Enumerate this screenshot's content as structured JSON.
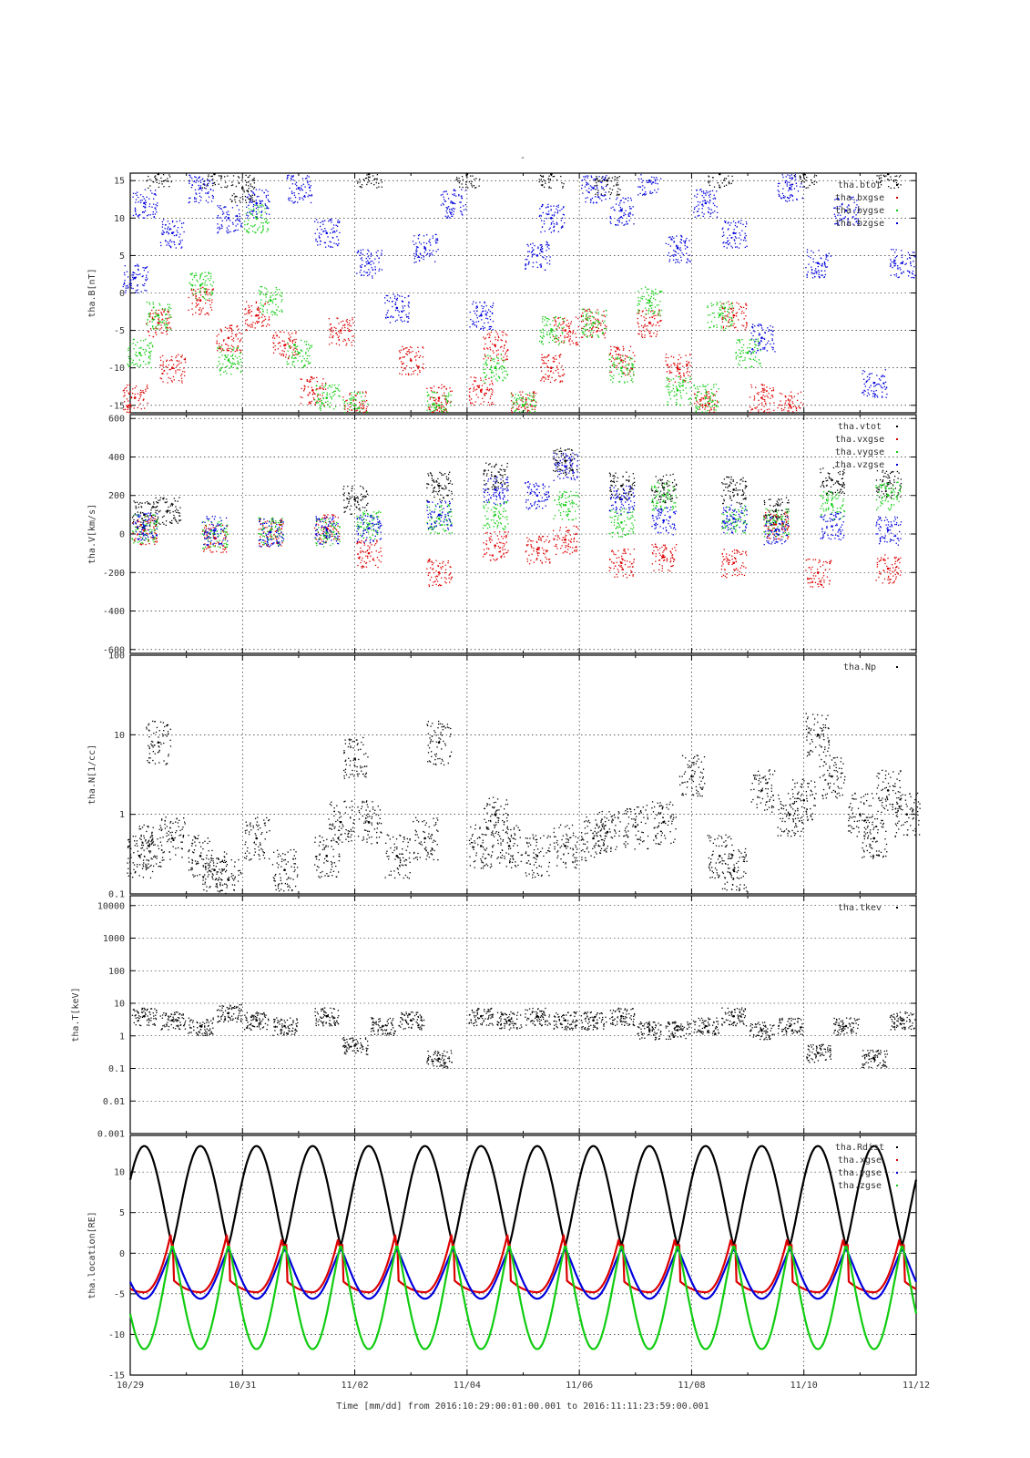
{
  "figure": {
    "title": "-",
    "xaxis_label": "Time [mm/dd]  from 2016:10:29:00:01:00.001  to  2016:11:11:23:59:00.001",
    "x_ticks": [
      "10/29",
      "10/31",
      "11/02",
      "11/04",
      "11/06",
      "11/08",
      "11/10",
      "11/12"
    ]
  },
  "colors": {
    "black": "#000000",
    "red": "#dd0000",
    "green": "#11cc11",
    "blue": "#0000dd",
    "grid": "#000000"
  },
  "chart_data": [
    {
      "type": "scatter",
      "id": "B",
      "ylabel": "tha.B[nT]",
      "ylim": [
        -16,
        16
      ],
      "yscale": "linear",
      "yticks": [
        15,
        10,
        5,
        0,
        -5,
        -10,
        -15
      ],
      "ytick_labels": [
        "15",
        "10",
        "5",
        "0",
        "-5",
        "-10",
        "-15"
      ],
      "legend_position": "top-right",
      "grid": true,
      "series": [
        {
          "name": "tha.btot",
          "color": "black",
          "x": [
            "10/29 12:00",
            "10/30 12:00",
            "10/31 00:00",
            "11/02 06:00",
            "11/04 00:00",
            "11/05 12:00",
            "11/06 12:00",
            "11/08 12:00",
            "11/10 00:00",
            "11/11 12:00"
          ],
          "y": [
            16,
            16,
            14,
            16,
            16,
            16,
            15,
            16,
            16,
            16
          ]
        },
        {
          "name": "tha.bxgse",
          "color": "red",
          "x": [
            "10/29 02:00",
            "10/29 12:00",
            "10/29 18:00",
            "10/30 06:00",
            "10/30 18:00",
            "10/31 06:00",
            "10/31 18:00",
            "11/01 06:00",
            "11/01 18:00",
            "11/02 00:00",
            "11/03 00:00",
            "11/03 12:00",
            "11/04 06:00",
            "11/04 12:00",
            "11/05 00:00",
            "11/05 12:00",
            "11/05 18:00",
            "11/06 06:00",
            "11/06 18:00",
            "11/07 06:00",
            "11/07 18:00",
            "11/08 06:00",
            "11/08 18:00",
            "11/09 06:00",
            "11/09 18:00"
          ],
          "y": [
            -14,
            -4,
            -10,
            -1,
            -6,
            -3,
            -7,
            -13,
            -5,
            -15,
            -9,
            -14,
            -13,
            -7,
            -15,
            -10,
            -5,
            -4,
            -9,
            -4,
            -10,
            -15,
            -3,
            -14,
            -15
          ]
        },
        {
          "name": "tha.bygse",
          "color": "green",
          "x": [
            "10/29 04:00",
            "10/29 12:00",
            "10/30 06:00",
            "10/30 18:00",
            "10/31 06:00",
            "10/31 12:00",
            "11/01 00:00",
            "11/01 12:00",
            "11/02 00:00",
            "11/03 12:00",
            "11/04 12:00",
            "11/05 00:00",
            "11/05 12:00",
            "11/06 06:00",
            "11/06 18:00",
            "11/07 06:00",
            "11/07 18:00",
            "11/08 06:00",
            "11/08 12:00",
            "11/09 00:00"
          ],
          "y": [
            -8,
            -3,
            1,
            -9,
            10,
            -1,
            -8,
            -14,
            -15,
            -15,
            -10,
            -15,
            -5,
            -4,
            -10,
            -1,
            -13,
            -14,
            -3,
            -8
          ]
        },
        {
          "name": "tha.bzgse",
          "color": "blue",
          "x": [
            "10/29 02:00",
            "10/29 06:00",
            "10/29 18:00",
            "10/30 06:00",
            "10/30 18:00",
            "10/31 06:00",
            "11/01 00:00",
            "11/01 12:00",
            "11/02 06:00",
            "11/02 18:00",
            "11/03 06:00",
            "11/03 18:00",
            "11/04 06:00",
            "11/05 06:00",
            "11/05 12:00",
            "11/06 06:00",
            "11/06 18:00",
            "11/07 06:00",
            "11/07 18:00",
            "11/08 06:00",
            "11/08 18:00",
            "11/09 06:00",
            "11/09 18:00",
            "11/10 06:00",
            "11/10 18:00",
            "11/11 06:00",
            "11/11 18:00"
          ],
          "y": [
            2,
            12,
            8,
            14,
            10,
            12,
            14,
            8,
            4,
            -2,
            6,
            12,
            -3,
            5,
            10,
            14,
            11,
            15,
            6,
            12,
            8,
            -6,
            14,
            4,
            11,
            -12,
            4
          ]
        }
      ]
    },
    {
      "type": "scatter",
      "id": "V",
      "ylabel": "tha.V[km/s]",
      "ylim": [
        -620,
        620
      ],
      "yscale": "linear",
      "yticks": [
        600,
        400,
        200,
        0,
        -200,
        -400,
        -600
      ],
      "ytick_labels": [
        "600",
        "400",
        "200",
        "0",
        "-200",
        "-400",
        "-600"
      ],
      "legend_position": "top-right",
      "grid": true,
      "series": [
        {
          "name": "tha.vtot",
          "color": "black",
          "x": [
            "10/29 06:00",
            "10/29 16:00",
            "11/02 00:00",
            "11/03 12:00",
            "11/04 12:00",
            "11/05 18:00",
            "11/06 18:00",
            "11/07 12:00",
            "11/08 18:00",
            "11/09 12:00",
            "11/10 12:00",
            "11/11 12:00"
          ],
          "y": [
            100,
            120,
            180,
            250,
            300,
            380,
            250,
            240,
            230,
            120,
            280,
            260
          ]
        },
        {
          "name": "tha.vxgse",
          "color": "red",
          "x": [
            "10/29 06:00",
            "10/30 12:00",
            "10/31 12:00",
            "11/01 12:00",
            "11/02 06:00",
            "11/03 12:00",
            "11/04 12:00",
            "11/05 06:00",
            "11/05 18:00",
            "11/06 18:00",
            "11/07 12:00",
            "11/08 18:00",
            "11/09 12:00",
            "11/10 06:00",
            "11/11 12:00"
          ],
          "y": [
            20,
            -20,
            10,
            30,
            -100,
            -200,
            -60,
            -80,
            -30,
            -150,
            -120,
            -150,
            50,
            -200,
            -180
          ]
        },
        {
          "name": "tha.vygse",
          "color": "green",
          "x": [
            "10/29 06:00",
            "10/30 12:00",
            "10/31 12:00",
            "11/01 12:00",
            "11/02 06:00",
            "11/03 12:00",
            "11/04 12:00",
            "11/05 18:00",
            "11/06 18:00",
            "11/07 12:00",
            "11/08 18:00",
            "11/09 12:00",
            "11/10 12:00",
            "11/11 12:00"
          ],
          "y": [
            30,
            0,
            20,
            10,
            50,
            80,
            100,
            150,
            60,
            200,
            80,
            60,
            150,
            200
          ]
        },
        {
          "name": "tha.vzgse",
          "color": "blue",
          "x": [
            "10/29 06:00",
            "10/30 12:00",
            "10/31 12:00",
            "11/01 12:00",
            "11/02 06:00",
            "11/03 12:00",
            "11/04 12:00",
            "11/05 06:00",
            "11/05 18:00",
            "11/06 18:00",
            "11/07 12:00",
            "11/08 18:00",
            "11/09 12:00",
            "11/10 12:00",
            "11/11 12:00"
          ],
          "y": [
            40,
            20,
            10,
            20,
            30,
            100,
            230,
            200,
            350,
            180,
            70,
            80,
            20,
            40,
            20
          ]
        }
      ]
    },
    {
      "type": "scatter",
      "id": "N",
      "ylabel": "tha.N[1/cc]",
      "ylim": [
        0.1,
        100
      ],
      "yscale": "log",
      "yticks": [
        100,
        10,
        1,
        0.1
      ],
      "ytick_labels": [
        "100",
        "10",
        "1",
        "0.1"
      ],
      "legend_position": "top-right",
      "grid": true,
      "series": [
        {
          "name": "tha.Np",
          "color": "black",
          "x": [
            "10/29 04:00",
            "10/29 08:00",
            "10/29 12:00",
            "10/29 18:00",
            "10/30 06:00",
            "10/30 12:00",
            "10/30 18:00",
            "10/31 06:00",
            "10/31 18:00",
            "11/01 12:00",
            "11/01 18:00",
            "11/02 00:00",
            "11/02 06:00",
            "11/02 18:00",
            "11/03 06:00",
            "11/03 12:00",
            "11/04 06:00",
            "11/04 12:00",
            "11/04 18:00",
            "11/05 06:00",
            "11/05 18:00",
            "11/06 06:00",
            "11/06 12:00",
            "11/07 00:00",
            "11/07 12:00",
            "11/08 00:00",
            "11/08 12:00",
            "11/08 18:00",
            "11/09 06:00",
            "11/09 18:00",
            "11/10 00:00",
            "11/10 06:00",
            "11/10 12:00",
            "11/11 00:00",
            "11/11 06:00",
            "11/11 12:00",
            "11/11 20:00"
          ],
          "y": [
            0.3,
            0.4,
            8,
            0.5,
            0.3,
            0.2,
            0.15,
            0.5,
            0.2,
            0.3,
            0.8,
            5,
            0.8,
            0.3,
            0.5,
            8,
            0.4,
            1,
            0.4,
            0.3,
            0.4,
            0.5,
            0.6,
            0.7,
            0.8,
            3,
            0.3,
            0.2,
            2,
            1,
            1.5,
            10,
            3,
            1,
            0.5,
            2,
            1
          ]
        }
      ]
    },
    {
      "type": "scatter",
      "id": "T",
      "ylabel": "tha.T[keV]",
      "ylim": [
        0.001,
        20000
      ],
      "yscale": "log",
      "yticks": [
        10000,
        1000,
        100,
        10,
        1,
        0.1,
        0.01,
        0.001
      ],
      "ytick_labels": [
        "10000",
        "1000",
        "100",
        "10",
        "1",
        "0.1",
        "0.01",
        "0.001"
      ],
      "legend_position": "top-right",
      "grid": true,
      "series": [
        {
          "name": "tha.tkev",
          "color": "black",
          "x": [
            "10/29 06:00",
            "10/29 18:00",
            "10/30 06:00",
            "10/30 18:00",
            "10/31 06:00",
            "10/31 18:00",
            "11/01 12:00",
            "11/02 00:00",
            "11/02 12:00",
            "11/03 00:00",
            "11/03 12:00",
            "11/04 06:00",
            "11/04 18:00",
            "11/05 06:00",
            "11/05 18:00",
            "11/06 06:00",
            "11/06 18:00",
            "11/07 06:00",
            "11/07 18:00",
            "11/08 06:00",
            "11/08 18:00",
            "11/09 06:00",
            "11/09 18:00",
            "11/10 06:00",
            "11/10 18:00",
            "11/11 06:00",
            "11/11 18:00"
          ],
          "y": [
            4,
            3,
            2,
            5,
            3,
            2,
            4,
            0.5,
            2,
            3,
            0.2,
            4,
            3,
            4,
            3,
            3,
            4,
            1.5,
            1.5,
            2,
            4,
            1.5,
            2,
            0.3,
            2,
            0.2,
            3
          ]
        }
      ]
    },
    {
      "type": "line",
      "id": "location",
      "ylabel": "tha.location[RE]",
      "ylim": [
        -15,
        14.5
      ],
      "yscale": "linear",
      "yticks": [
        10,
        5,
        0,
        -5,
        -10,
        -15
      ],
      "ytick_labels": [
        "10",
        "5",
        "0",
        "-5",
        "-10",
        "-15"
      ],
      "legend_position": "top-right",
      "grid": true,
      "orbit_period_days": 1.0,
      "orbit_apogee_times": [
        "10/29 06:00",
        "10/30 06:00",
        "10/31 06:00",
        "11/01 06:00",
        "11/02 06:00",
        "11/03 06:00",
        "11/04 06:00",
        "11/05 06:00",
        "11/06 06:00",
        "11/07 06:00",
        "11/08 06:00",
        "11/09 06:00",
        "11/10 06:00",
        "11/11 06:00"
      ],
      "orbit_perigee_times": [
        "10/29 18:00",
        "10/30 18:00",
        "10/31 18:00",
        "11/01 18:00",
        "11/02 18:00",
        "11/03 18:00",
        "11/04 18:00",
        "11/05 18:00",
        "11/06 18:00",
        "11/07 18:00",
        "11/08 18:00",
        "11/09 18:00",
        "11/10 18:00",
        "11/11 18:00"
      ],
      "series": [
        {
          "name": "tha.Rdist",
          "color": "black",
          "apogee": 13.2,
          "perigee": 1.0
        },
        {
          "name": "tha.xgse",
          "color": "red",
          "apogee": -4.8,
          "perigee": 1.0,
          "max": 3.2
        },
        {
          "name": "tha.ygse",
          "color": "blue",
          "apogee": -5.6,
          "perigee": 0.5
        },
        {
          "name": "tha.zgse",
          "color": "green",
          "apogee": -11.8,
          "perigee": 1.0
        }
      ]
    }
  ]
}
